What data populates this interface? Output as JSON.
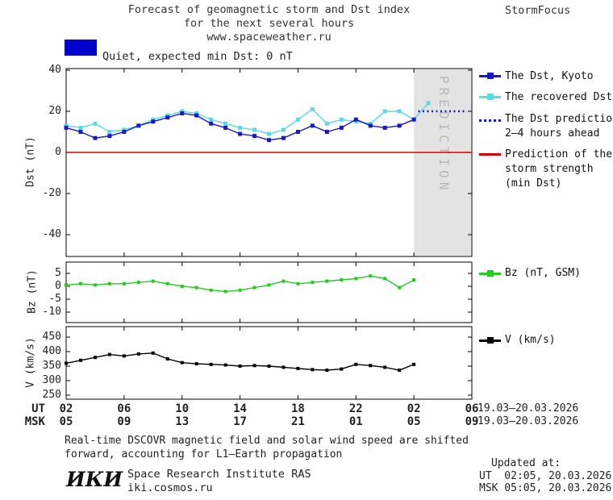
{
  "header": {
    "title_line1": "Forecast of geomagnetic storm and Dst index",
    "title_line2": "for the next several hours",
    "title_line3": "www.spaceweather.ru",
    "brand": "StormFocus"
  },
  "quiet": {
    "label": "Quiet, expected min Dst: 0 nT",
    "color": "#0000cc"
  },
  "legend": {
    "dst_kyoto": "The Dst, Kyoto",
    "recovered": "The recovered Dst",
    "prediction_line1": "The Dst prediction",
    "prediction_line2": "2–4 hours ahead",
    "strength_line1": "Prediction of the",
    "strength_line2": "storm strength",
    "strength_line3": "(min Dst)",
    "bz": "Bz (nT, GSM)",
    "v": "V (km/s)"
  },
  "x_axis": {
    "tick_hours": [
      0,
      4,
      8,
      12,
      16,
      20,
      24,
      28
    ],
    "ut_labels": [
      "02",
      "06",
      "10",
      "14",
      "18",
      "22",
      "02",
      "06"
    ],
    "msk_labels": [
      "05",
      "09",
      "13",
      "17",
      "21",
      "01",
      "05",
      "09"
    ],
    "ut_row_label": "UT",
    "msk_row_label": "MSK",
    "date_range": "19.03–20.03.2026"
  },
  "chart_data": [
    {
      "type": "line",
      "panel": "dst",
      "ylabel": "Dst (nT)",
      "ylim": [
        -50,
        41
      ],
      "yticks": [
        40,
        20,
        0,
        -20,
        -40
      ],
      "prediction_region": {
        "x0": 24,
        "x1": 28,
        "label": "PREDICTION",
        "fill": "#e3e3e3",
        "text_color": "#b9b9b9"
      },
      "series": [
        {
          "name": "Prediction of the storm strength (min Dst)",
          "color": "#dd0000",
          "style": "solid",
          "x": [
            0,
            28
          ],
          "y": [
            0,
            0
          ]
        },
        {
          "name": "The recovered Dst",
          "color": "#55dce8",
          "marker": "square",
          "x": [
            0,
            1,
            2,
            3,
            4,
            5,
            6,
            7,
            8,
            9,
            10,
            11,
            12,
            13,
            14,
            15,
            16,
            17,
            18,
            19,
            20,
            21,
            22,
            23,
            24,
            25
          ],
          "y": [
            13,
            12,
            14,
            10,
            11,
            13,
            16,
            18,
            20,
            19,
            16,
            14,
            12,
            11,
            9,
            11,
            16,
            21,
            14,
            16,
            15,
            14,
            20,
            20,
            16,
            24
          ]
        },
        {
          "name": "The Dst, Kyoto",
          "color": "#1818cc",
          "marker": "square",
          "x": [
            0,
            1,
            2,
            3,
            4,
            5,
            6,
            7,
            8,
            9,
            10,
            11,
            12,
            13,
            14,
            15,
            16,
            17,
            18,
            19,
            20,
            21,
            22,
            23,
            24
          ],
          "y": [
            12,
            10,
            7,
            8,
            10,
            13,
            15,
            17,
            19,
            18,
            14,
            12,
            9,
            8,
            6,
            7,
            10,
            13,
            10,
            12,
            16,
            13,
            12,
            13,
            16
          ]
        },
        {
          "name": "The Dst prediction 2–4 hours ahead",
          "color": "#1818cc",
          "style": "dotted",
          "x": [
            24.3,
            27.6
          ],
          "y": [
            20,
            20
          ]
        }
      ]
    },
    {
      "type": "line",
      "panel": "bz",
      "ylabel": "Bz (nT)",
      "ylim": [
        -14,
        9
      ],
      "yticks": [
        5,
        0,
        -5,
        -10
      ],
      "series": [
        {
          "name": "Bz (nT, GSM)",
          "color": "#22cc22",
          "marker": "square",
          "x": [
            0,
            1,
            2,
            3,
            4,
            5,
            6,
            7,
            8,
            9,
            10,
            11,
            12,
            13,
            14,
            15,
            16,
            17,
            18,
            19,
            20,
            21,
            22,
            23,
            24
          ],
          "y": [
            0.5,
            1,
            0.5,
            1,
            1,
            1.5,
            2,
            1,
            0,
            -0.5,
            -1.5,
            -2,
            -1.5,
            -0.5,
            0.5,
            2,
            1,
            1.5,
            2,
            2.5,
            3,
            4,
            3,
            -0.5,
            2.5
          ]
        }
      ]
    },
    {
      "type": "line",
      "panel": "v",
      "ylabel": "V (km/s)",
      "ylim": [
        235,
        485
      ],
      "yticks": [
        450,
        400,
        350,
        300,
        250
      ],
      "series": [
        {
          "name": "V (km/s)",
          "color": "#000000",
          "marker": "square",
          "x": [
            0,
            1,
            2,
            3,
            4,
            5,
            6,
            7,
            8,
            9,
            10,
            11,
            12,
            13,
            14,
            15,
            16,
            17,
            18,
            19,
            20,
            21,
            22,
            23,
            24
          ],
          "y": [
            360,
            370,
            380,
            390,
            385,
            392,
            395,
            375,
            362,
            358,
            356,
            354,
            350,
            352,
            350,
            346,
            342,
            338,
            336,
            340,
            356,
            352,
            346,
            336,
            356
          ]
        }
      ]
    }
  ],
  "footer": {
    "line1": "Real-time DSCOVR magnetic field and solar wind speed are shifted",
    "line2": "forward, accounting for L1–Earth propagation",
    "logo": "ИКИ",
    "institute": "Space Research Institute RAS",
    "site": "iki.cosmos.ru"
  },
  "updated": {
    "heading": "Updated at:",
    "ut": "UT  02:05, 20.03.2026",
    "msk": "MSK 05:05, 20.03.2026"
  }
}
